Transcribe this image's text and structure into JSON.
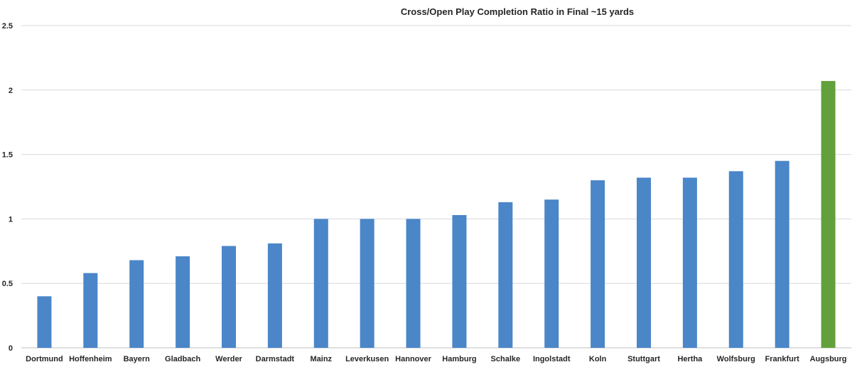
{
  "chart_data": {
    "type": "bar",
    "title": "Cross/Open Play Completion Ratio in Final ~15 yards",
    "xlabel": "",
    "ylabel": "",
    "ylim": [
      0,
      2.5
    ],
    "yticks": [
      "0",
      "0.5",
      "1",
      "1.5",
      "2",
      "2.5"
    ],
    "grid": true,
    "categories": [
      "Dortmund",
      "Hoffenheim",
      "Bayern",
      "Gladbach",
      "Werder",
      "Darmstadt",
      "Mainz",
      "Leverkusen",
      "Hannover",
      "Hamburg",
      "Schalke",
      "Ingolstadt",
      "Koln",
      "Stuttgart",
      "Hertha",
      "Wolfsburg",
      "Frankfurt",
      "Augsburg"
    ],
    "values": [
      0.4,
      0.58,
      0.68,
      0.71,
      0.79,
      0.81,
      1.0,
      1.0,
      1.0,
      1.03,
      1.13,
      1.15,
      1.3,
      1.32,
      1.32,
      1.37,
      1.45,
      2.07
    ],
    "colors": {
      "default_bar": "#4a86c8",
      "highlight_bar": "#62a03c"
    },
    "highlight_category": "Augsburg"
  }
}
